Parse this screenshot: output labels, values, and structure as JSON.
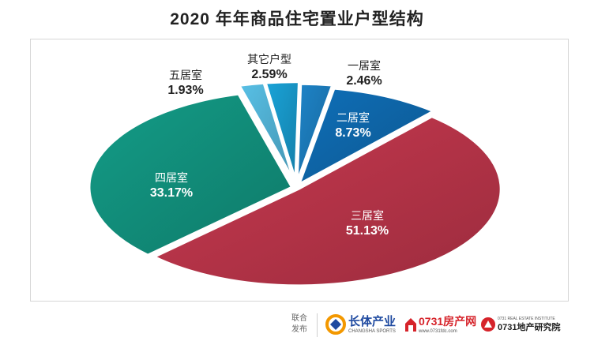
{
  "title": "2020 年年商品住宅置业户型结构",
  "chart_data": {
    "type": "pie",
    "title": "2020 年年商品住宅置业户型结构",
    "slices": [
      {
        "label": "一居室",
        "value": 2.46,
        "display": "2.46%",
        "color": "#1e84c8"
      },
      {
        "label": "二居室",
        "value": 8.73,
        "display": "8.73%",
        "color": "#0f6fb8"
      },
      {
        "label": "三居室",
        "value": 51.13,
        "display": "51.13%",
        "color": "#c8394f"
      },
      {
        "label": "四居室",
        "value": 33.17,
        "display": "33.17%",
        "color": "#139c87"
      },
      {
        "label": "五居室",
        "value": 1.93,
        "display": "1.93%",
        "color": "#58c0e6"
      },
      {
        "label": "其它户型",
        "value": 2.59,
        "display": "2.59%",
        "color": "#1aa3d8"
      }
    ],
    "start_angle_deg": -89,
    "direction": "clockwise",
    "exploded": true,
    "legend": "none"
  },
  "footer": {
    "joint_label": "联合发布",
    "logos": [
      {
        "name": "长沙体育产业",
        "text": "长体产业",
        "subtext": "CHANGSHA SPORTS",
        "color": "#1f4aa0",
        "accent": "#f39800"
      },
      {
        "name": "0731房产网",
        "text": "0731房产网",
        "subtext": "www.0731fdc.com",
        "color": "#d6232a"
      },
      {
        "name": "0731地产研究院",
        "text": "0731地产研究院",
        "subtext": "0731 REAL ESTATE INSTITUTE",
        "color": "#222222",
        "accent": "#d6232a"
      }
    ]
  },
  "watermark": {
    "text": "0731房产网 www.0731fdc.com",
    "color": "#cfd6dc"
  }
}
